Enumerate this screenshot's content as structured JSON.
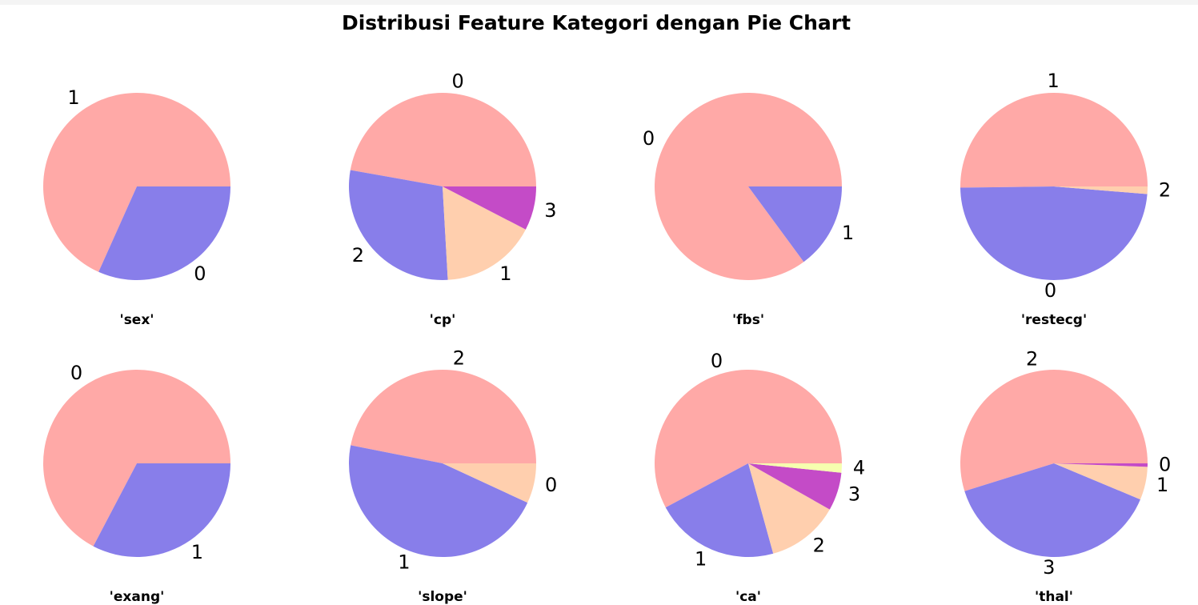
{
  "title": "Distribusi Feature Kategori dengan Pie Chart",
  "colors": {
    "salmon": "#FFA9A7",
    "purple": "#887EEA",
    "peach": "#FFCFAE",
    "magenta": "#C44BC7",
    "yellow": "#F6FFAF"
  },
  "chart_data": [
    {
      "type": "pie",
      "xlabel": "'sex'",
      "labels": [
        "1",
        "0"
      ],
      "values": [
        68.3,
        31.7
      ],
      "colors": [
        "salmon",
        "purple"
      ]
    },
    {
      "type": "pie",
      "xlabel": "'cp'",
      "labels": [
        "0",
        "2",
        "1",
        "3"
      ],
      "values": [
        47.2,
        28.7,
        16.5,
        7.6
      ],
      "colors": [
        "salmon",
        "purple",
        "peach",
        "magenta"
      ]
    },
    {
      "type": "pie",
      "xlabel": "'fbs'",
      "labels": [
        "0",
        "1"
      ],
      "values": [
        85.1,
        14.9
      ],
      "colors": [
        "salmon",
        "purple"
      ]
    },
    {
      "type": "pie",
      "xlabel": "'restecg'",
      "labels": [
        "1",
        "0",
        "2"
      ],
      "values": [
        50.2,
        48.5,
        1.3
      ],
      "colors": [
        "salmon",
        "purple",
        "peach"
      ]
    },
    {
      "type": "pie",
      "xlabel": "'exang'",
      "labels": [
        "0",
        "1"
      ],
      "values": [
        67.3,
        32.7
      ],
      "colors": [
        "salmon",
        "purple"
      ]
    },
    {
      "type": "pie",
      "xlabel": "'slope'",
      "labels": [
        "2",
        "1",
        "0"
      ],
      "values": [
        46.9,
        46.2,
        6.9
      ],
      "colors": [
        "salmon",
        "purple",
        "peach"
      ]
    },
    {
      "type": "pie",
      "xlabel": "'ca'",
      "labels": [
        "0",
        "1",
        "2",
        "3",
        "4"
      ],
      "values": [
        57.8,
        21.5,
        12.5,
        6.6,
        1.6
      ],
      "colors": [
        "salmon",
        "purple",
        "peach",
        "magenta",
        "yellow"
      ]
    },
    {
      "type": "pie",
      "xlabel": "'thal'",
      "labels": [
        "2",
        "3",
        "1",
        "0"
      ],
      "values": [
        54.8,
        38.9,
        5.7,
        0.6
      ],
      "colors": [
        "salmon",
        "purple",
        "peach",
        "magenta"
      ]
    }
  ]
}
